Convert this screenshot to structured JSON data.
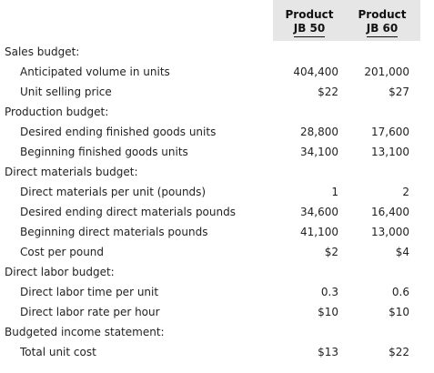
{
  "header": {
    "col_a_line1": "Product",
    "col_a_line2": "JB 50",
    "col_b_line1": "Product",
    "col_b_line2": "JB 60"
  },
  "sections": {
    "sales": {
      "title": "Sales budget:",
      "volume_label": "Anticipated volume in units",
      "volume_a": "404,400",
      "volume_b": "201,000",
      "price_label": "Unit selling price",
      "price_a": "$22",
      "price_b": "$27"
    },
    "production": {
      "title": "Production budget:",
      "ending_label": "Desired ending finished goods units",
      "ending_a": "28,800",
      "ending_b": "17,600",
      "beginning_label": "Beginning finished goods units",
      "beginning_a": "34,100",
      "beginning_b": "13,100"
    },
    "materials": {
      "title": "Direct materials budget:",
      "per_unit_label": "Direct materials per unit (pounds)",
      "per_unit_a": "1",
      "per_unit_b": "2",
      "ending_label": "Desired ending direct materials pounds",
      "ending_a": "34,600",
      "ending_b": "16,400",
      "beginning_label": "Beginning direct materials pounds",
      "beginning_a": "41,100",
      "beginning_b": "13,000",
      "cost_label": "Cost per pound",
      "cost_a": "$2",
      "cost_b": "$4"
    },
    "labor": {
      "title": "Direct labor budget:",
      "time_label": "Direct labor time per unit",
      "time_a": "0.3",
      "time_b": "0.6",
      "rate_label": "Direct labor rate per hour",
      "rate_a": "$10",
      "rate_b": "$10"
    },
    "income": {
      "title": "Budgeted income statement:",
      "total_label": "Total unit cost",
      "total_a": "$13",
      "total_b": "$22"
    }
  }
}
